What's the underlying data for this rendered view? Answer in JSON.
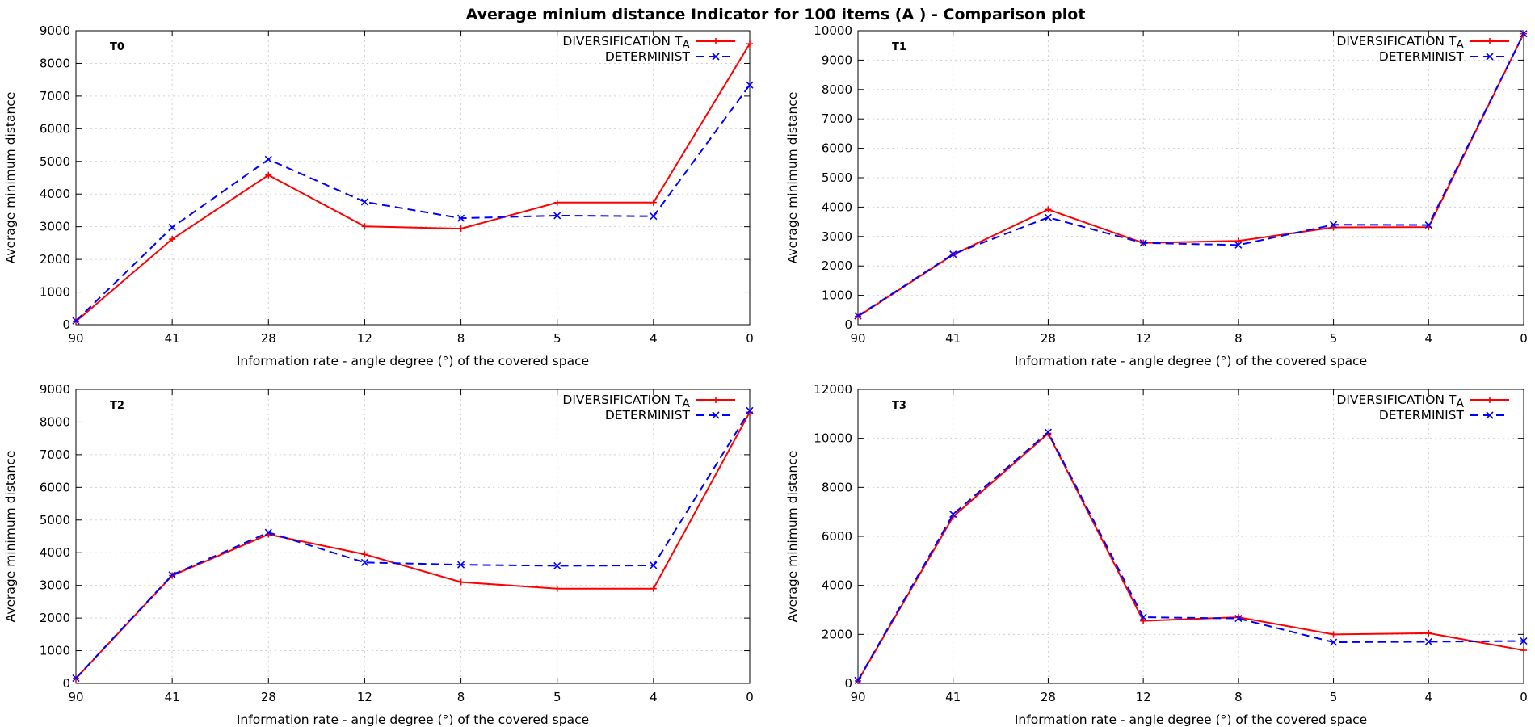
{
  "figure_title": "Average minium distance Indicator for 100 items (A )  - Comparison plot",
  "colors": {
    "diversification": "#ff0000",
    "determinist": "#0000ff",
    "grid": "#d0d0d0",
    "axis": "#000000"
  },
  "chart_data": [
    {
      "type": "line",
      "panel_label": "T0",
      "categories": [
        "90",
        "41",
        "28",
        "12",
        "8",
        "5",
        "4",
        "0"
      ],
      "series": [
        {
          "name": "DIVERSIFICATION T",
          "name_subscript": "A",
          "style": "solid",
          "marker": "plus",
          "values": [
            100,
            2620,
            4580,
            3010,
            2940,
            3740,
            3740,
            8600
          ]
        },
        {
          "name": "DETERMINIST",
          "style": "dashed",
          "marker": "cross",
          "values": [
            120,
            2980,
            5060,
            3760,
            3260,
            3340,
            3320,
            7340
          ]
        }
      ],
      "xlabel": "Information rate - angle degree (°)  of the covered space",
      "ylabel": "Average minimum distance",
      "ylim": [
        0,
        9000
      ],
      "yticks": [
        0,
        1000,
        2000,
        3000,
        4000,
        5000,
        6000,
        7000,
        8000,
        9000
      ],
      "grid": true,
      "legend": "top-right"
    },
    {
      "type": "line",
      "panel_label": "T1",
      "categories": [
        "90",
        "41",
        "28",
        "12",
        "8",
        "5",
        "4",
        "0"
      ],
      "series": [
        {
          "name": "DIVERSIFICATION T",
          "name_subscript": "A",
          "style": "solid",
          "marker": "plus",
          "values": [
            280,
            2380,
            3920,
            2780,
            2850,
            3310,
            3320,
            9900
          ]
        },
        {
          "name": "DETERMINIST",
          "style": "dashed",
          "marker": "cross",
          "values": [
            300,
            2400,
            3650,
            2780,
            2710,
            3400,
            3390,
            9900
          ]
        }
      ],
      "xlabel": "Information rate - angle degree (°)  of the covered space",
      "ylabel": "Average minimum distance",
      "ylim": [
        0,
        10000
      ],
      "yticks": [
        0,
        1000,
        2000,
        3000,
        4000,
        5000,
        6000,
        7000,
        8000,
        9000,
        10000
      ],
      "grid": true,
      "legend": "top-right"
    },
    {
      "type": "line",
      "panel_label": "T2",
      "categories": [
        "90",
        "41",
        "28",
        "12",
        "8",
        "5",
        "4",
        "0"
      ],
      "series": [
        {
          "name": "DIVERSIFICATION T",
          "name_subscript": "A",
          "style": "solid",
          "marker": "plus",
          "values": [
            150,
            3300,
            4560,
            3950,
            3100,
            2900,
            2900,
            8300
          ]
        },
        {
          "name": "DETERMINIST",
          "style": "dashed",
          "marker": "cross",
          "values": [
            160,
            3320,
            4620,
            3700,
            3630,
            3600,
            3610,
            8350
          ]
        }
      ],
      "xlabel": "Information rate - angle degree (°)  of the covered space",
      "ylabel": "Average minimum distance",
      "ylim": [
        0,
        9000
      ],
      "yticks": [
        0,
        1000,
        2000,
        3000,
        4000,
        5000,
        6000,
        7000,
        8000,
        9000
      ],
      "grid": true,
      "legend": "top-right"
    },
    {
      "type": "line",
      "panel_label": "T3",
      "categories": [
        "90",
        "41",
        "28",
        "12",
        "8",
        "5",
        "4",
        "0"
      ],
      "series": [
        {
          "name": "DIVERSIFICATION T",
          "name_subscript": "A",
          "style": "solid",
          "marker": "plus",
          "values": [
            100,
            6800,
            10200,
            2550,
            2700,
            2000,
            2050,
            1350
          ]
        },
        {
          "name": "DETERMINIST",
          "style": "dashed",
          "marker": "cross",
          "values": [
            120,
            6900,
            10250,
            2700,
            2650,
            1680,
            1700,
            1730
          ]
        }
      ],
      "xlabel": "Information rate - angle degree (°)  of the covered space",
      "ylabel": "Average minimum distance",
      "ylim": [
        0,
        12000
      ],
      "yticks": [
        0,
        2000,
        4000,
        6000,
        8000,
        10000,
        12000
      ],
      "grid": true,
      "legend": "top-right"
    }
  ]
}
